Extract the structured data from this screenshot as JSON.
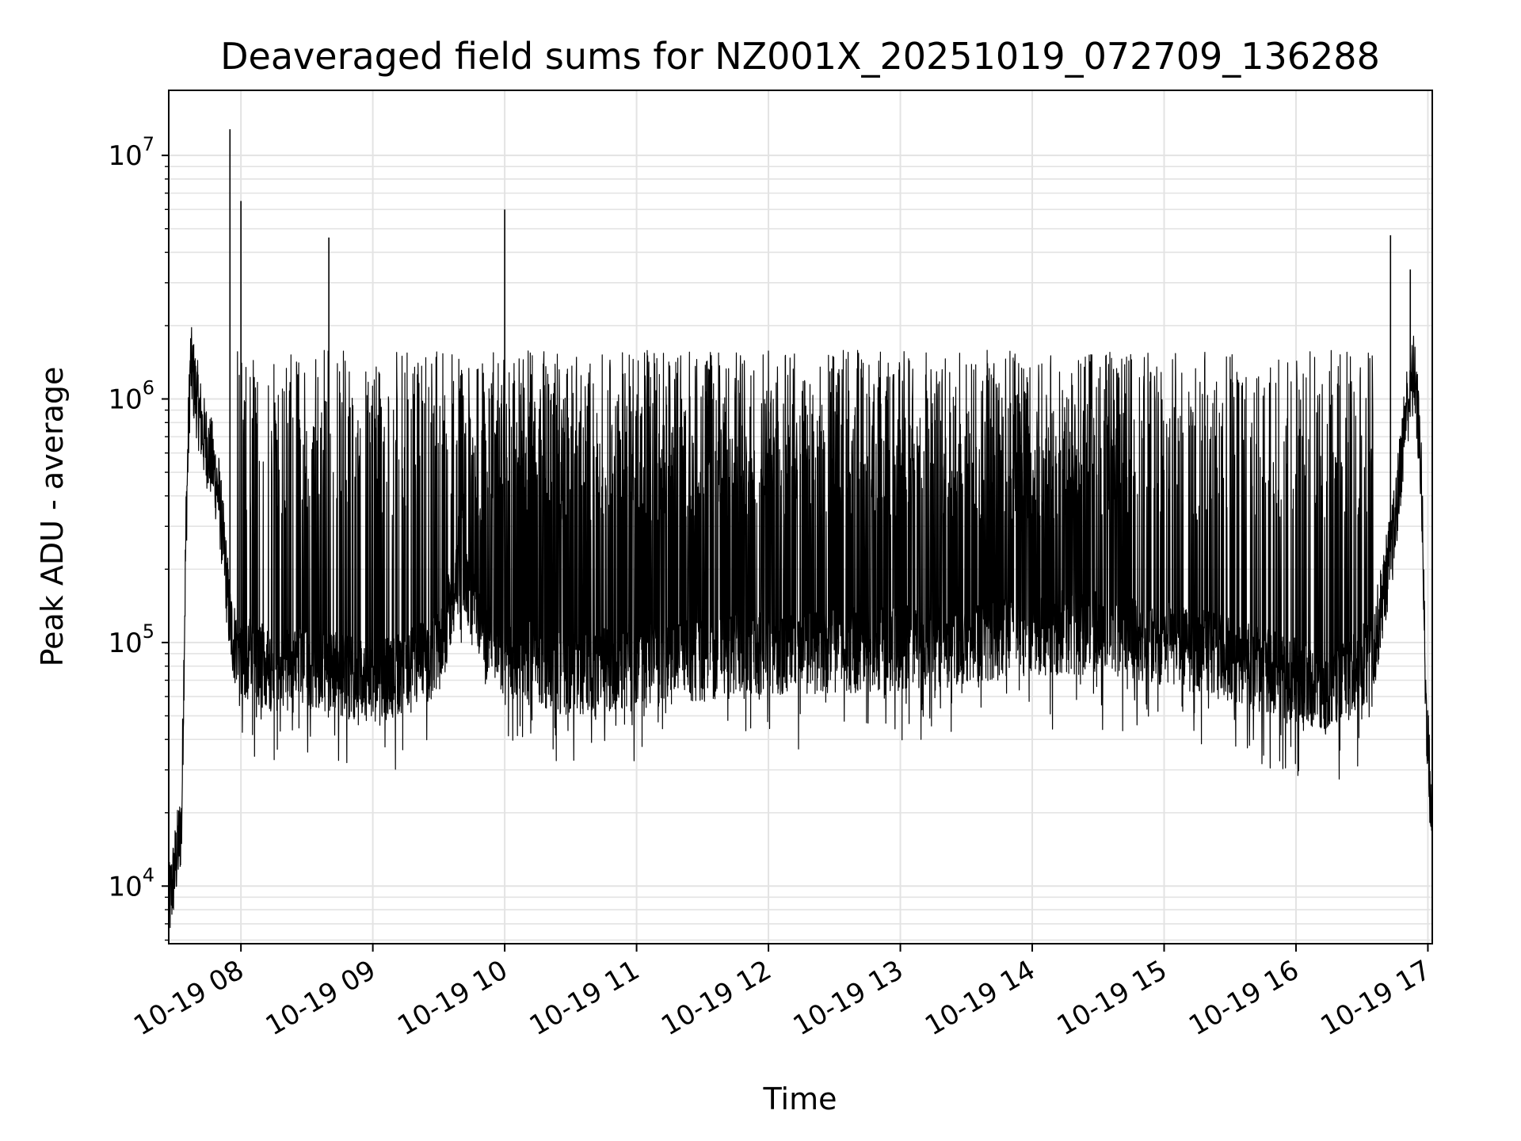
{
  "chart_data": {
    "type": "line",
    "title": "Deaveraged field sums for NZ001X_20251019_072709_136288",
    "xlabel": "Time",
    "ylabel": "Peak ADU - average",
    "yscale": "log",
    "ylim": [
      5800,
      18500000
    ],
    "xlim": [
      "2025-10-19 07:27:09",
      "2025-10-19 17:02:00"
    ],
    "grid": true,
    "legend": "none",
    "line_color": "#000000",
    "grid_color": "#e3e3e3",
    "x_tick_labels": [
      "10-19 08",
      "10-19 09",
      "10-19 10",
      "10-19 11",
      "10-19 12",
      "10-19 13",
      "10-19 14",
      "10-19 15",
      "10-19 16",
      "10-19 17"
    ],
    "y_tick_labels": [
      {
        "value": 10000,
        "base": "10",
        "exp": "4"
      },
      {
        "value": 100000,
        "base": "10",
        "exp": "5"
      },
      {
        "value": 1000000,
        "base": "10",
        "exp": "6"
      },
      {
        "value": 10000000,
        "base": "10",
        "exp": "7"
      }
    ],
    "series": [
      {
        "x": [
          "2025-10-19 07:27:09",
          "2025-10-19 07:30:00",
          "2025-10-19 07:33:00",
          "2025-10-19 07:35:00",
          "2025-10-19 07:37:00",
          "2025-10-19 07:40:00",
          "2025-10-19 07:43:00",
          "2025-10-19 07:47:00",
          "2025-10-19 07:50:00",
          "2025-10-19 07:53:00",
          "2025-10-19 07:55:00",
          "2025-10-19 07:57:00",
          "2025-10-19 08:00:00",
          "2025-10-19 08:05:00",
          "2025-10-19 08:10:00",
          "2025-10-19 08:20:00",
          "2025-10-19 08:30:00",
          "2025-10-19 08:40:00",
          "2025-10-19 08:50:00",
          "2025-10-19 09:00:00",
          "2025-10-19 09:15:00",
          "2025-10-19 09:30:00",
          "2025-10-19 09:40:00",
          "2025-10-19 09:50:00",
          "2025-10-19 10:00:00",
          "2025-10-19 10:15:00",
          "2025-10-19 10:30:00",
          "2025-10-19 11:00:00",
          "2025-10-19 11:30:00",
          "2025-10-19 12:00:00",
          "2025-10-19 12:30:00",
          "2025-10-19 13:00:00",
          "2025-10-19 13:30:00",
          "2025-10-19 14:00:00",
          "2025-10-19 14:30:00",
          "2025-10-19 15:00:00",
          "2025-10-19 15:30:00",
          "2025-10-19 16:00:00",
          "2025-10-19 16:15:00",
          "2025-10-19 16:25:00",
          "2025-10-19 16:35:00",
          "2025-10-19 16:45:00",
          "2025-10-19 16:50:00",
          "2025-10-19 16:54:00",
          "2025-10-19 16:57:00",
          "2025-10-19 16:59:00",
          "2025-10-19 17:01:00",
          "2025-10-19 17:02:00"
        ],
        "y": [
          8000,
          12000,
          18000,
          300000,
          1400000,
          1000000,
          700000,
          550000,
          400000,
          200000,
          120000,
          100000,
          90000,
          85000,
          80000,
          75000,
          80000,
          78000,
          72000,
          70000,
          75000,
          90000,
          200000,
          100000,
          90000,
          80000,
          75000,
          80000,
          85000,
          90000,
          92000,
          95000,
          100000,
          110000,
          110000,
          100000,
          85000,
          70000,
          65000,
          70000,
          90000,
          300000,
          900000,
          1300000,
          500000,
          60000,
          25000,
          15000
        ]
      }
    ],
    "spikes": [
      {
        "x": "2025-10-19 07:55:00",
        "y": 12800000
      },
      {
        "x": "2025-10-19 08:00:00",
        "y": 6500000
      },
      {
        "x": "2025-10-19 08:40:00",
        "y": 4600000
      },
      {
        "x": "2025-10-19 10:00:00",
        "y": 6000000
      },
      {
        "x": "2025-10-19 16:43:00",
        "y": 4700000
      },
      {
        "x": "2025-10-19 16:52:00",
        "y": 3400000
      }
    ]
  }
}
